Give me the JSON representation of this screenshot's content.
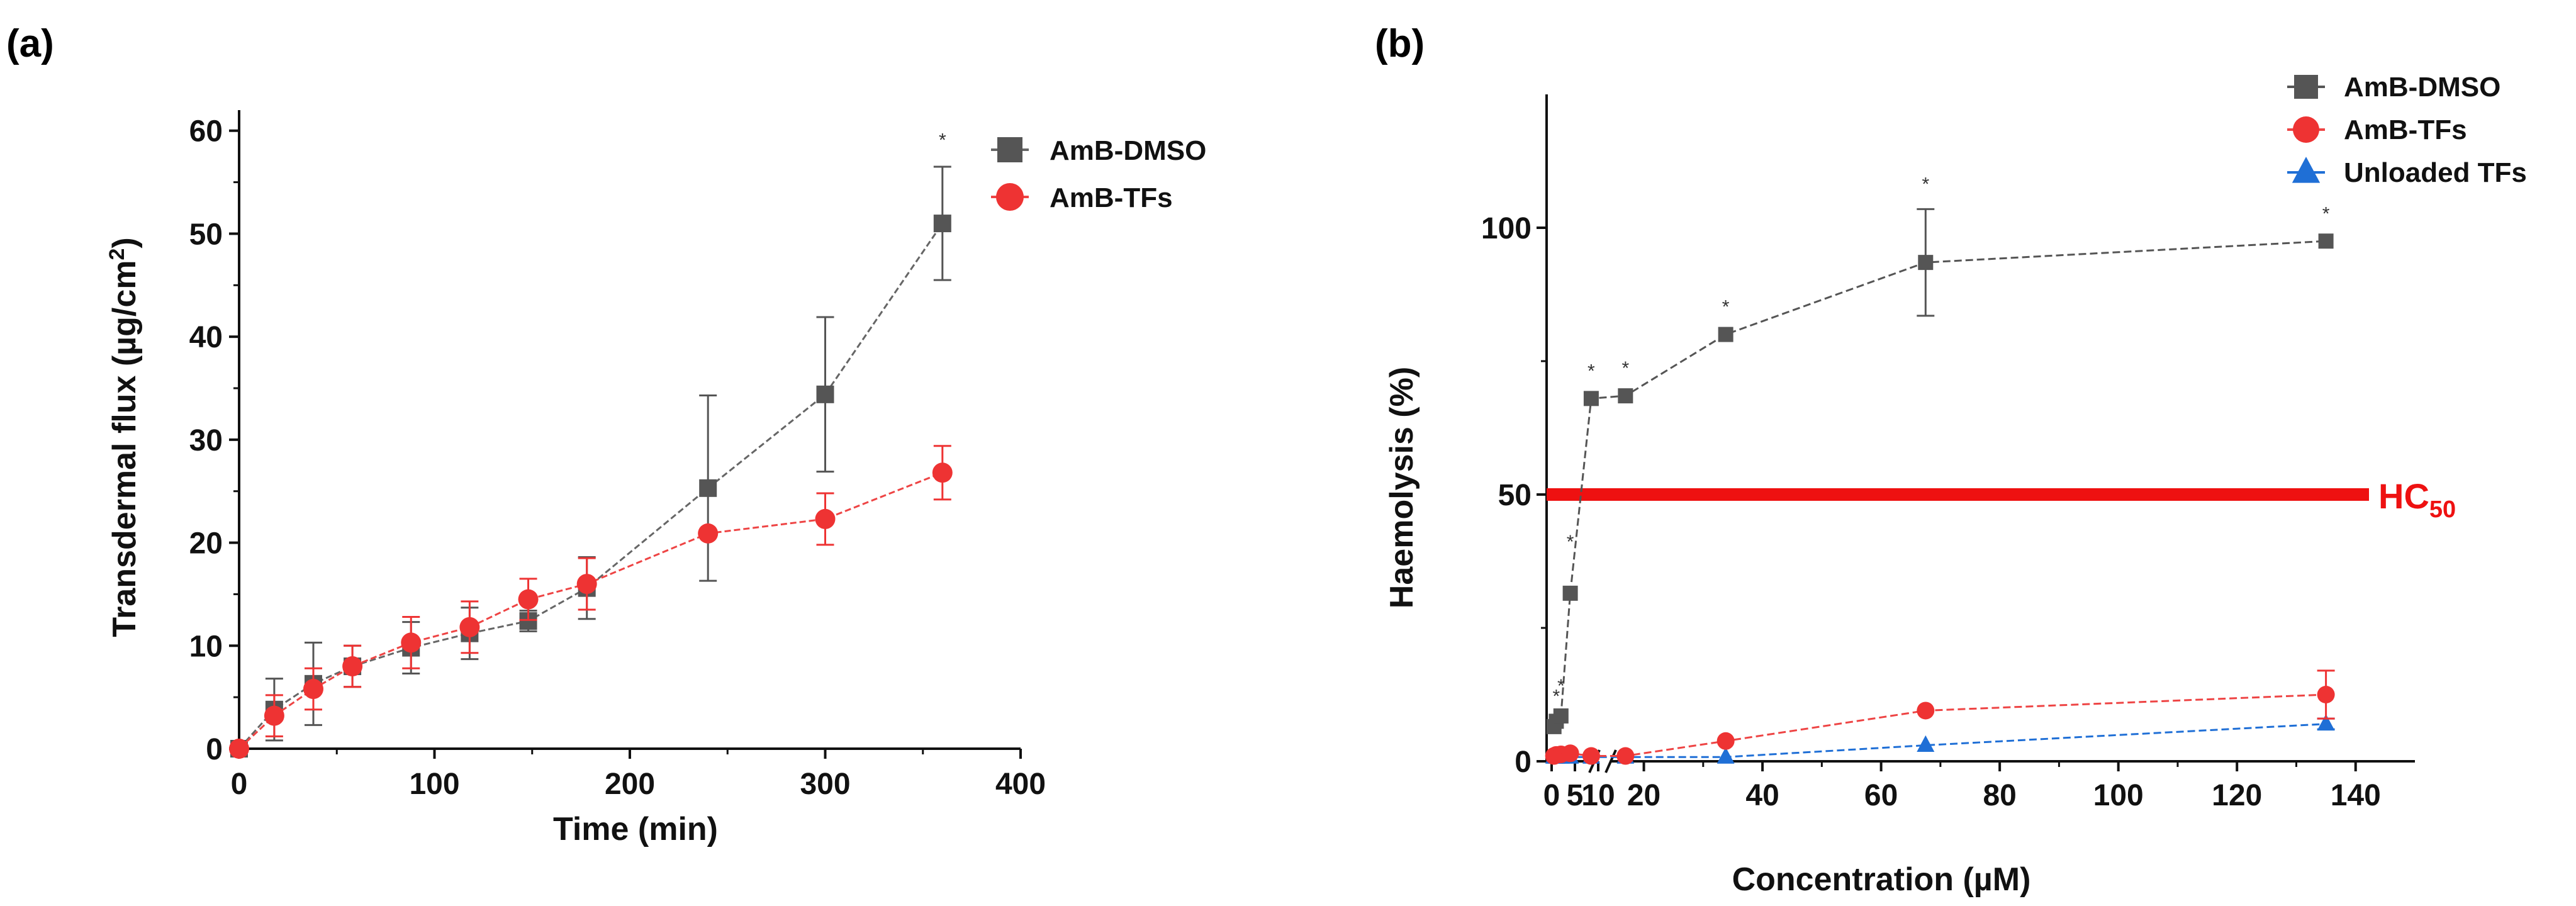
{
  "chart_data": [
    {
      "type": "line",
      "panel_label": "(a)",
      "title": "",
      "xlabel": "Time (min)",
      "ylabel_main": "Transdermal flux (µg/cm",
      "ylabel_sup": "2",
      "ylabel_end": ")",
      "xlim": [
        0,
        400
      ],
      "ylim": [
        0,
        62
      ],
      "xticks": [
        0,
        100,
        200,
        300,
        400
      ],
      "yticks": [
        0,
        10,
        20,
        30,
        40,
        50,
        60
      ],
      "grid": false,
      "legend_position": "top-right",
      "series": [
        {
          "name": "AmB-DMSO",
          "marker": "square",
          "color": "#555555",
          "line_color": "#666666",
          "x": [
            0,
            18,
            38,
            58,
            88,
            118,
            148,
            178,
            240,
            300,
            360
          ],
          "y": [
            0,
            3.8,
            6.3,
            8.0,
            9.8,
            11.2,
            12.4,
            15.6,
            25.3,
            34.4,
            51.0
          ],
          "err": [
            0,
            3.0,
            4.0,
            2.0,
            2.5,
            2.5,
            1.0,
            3.0,
            9.0,
            7.5,
            5.5
          ]
        },
        {
          "name": "AmB-TFs",
          "marker": "circle",
          "color": "#ee3333",
          "line_color": "#ee4444",
          "x": [
            0,
            18,
            38,
            58,
            88,
            118,
            148,
            178,
            240,
            300,
            360
          ],
          "y": [
            0,
            3.2,
            5.8,
            8.0,
            10.3,
            11.8,
            14.5,
            16.0,
            20.9,
            22.3,
            26.8
          ],
          "err": [
            0,
            2.0,
            2.0,
            2.0,
            2.5,
            2.5,
            2.0,
            2.5,
            0,
            2.5,
            2.6
          ]
        }
      ],
      "annotations": [
        {
          "text": "*",
          "x": 360,
          "y": 58.5
        }
      ]
    },
    {
      "type": "line",
      "panel_label": "(b)",
      "title": "",
      "xlabel": "Concentration (µM)",
      "ylabel": "Haemolysis (%)",
      "xlim": [
        0,
        150
      ],
      "ylim": [
        0,
        125
      ],
      "xtick_labels": [
        "0",
        "5",
        "10",
        "20",
        "40",
        "60",
        "80",
        "100",
        "120",
        "140"
      ],
      "yticks": [
        0,
        50,
        100
      ],
      "axis_break": "between 10 and 15",
      "grid": false,
      "legend_position": "top-right",
      "reference_line": {
        "label_main": "HC",
        "label_sub": "50",
        "y": 50,
        "color": "#ee1111"
      },
      "series": [
        {
          "name": "AmB-DMSO",
          "marker": "square",
          "color": "#555555",
          "line_color": "#555555",
          "x": [
            0.5,
            1.0,
            2.0,
            4.0,
            8.5,
            16.9,
            33.8,
            67.5,
            135
          ],
          "y": [
            6.5,
            7.5,
            8.5,
            31.5,
            68.0,
            68.5,
            80.0,
            93.5,
            97.5
          ],
          "err": [
            0,
            0,
            0,
            0,
            0,
            0,
            0,
            10.0,
            0
          ]
        },
        {
          "name": "AmB-TFs",
          "marker": "circle",
          "color": "#ee3333",
          "line_color": "#ee4444",
          "x": [
            0.5,
            1.0,
            2.0,
            4.0,
            8.5,
            16.9,
            33.8,
            67.5,
            135
          ],
          "y": [
            1.0,
            1.2,
            1.3,
            1.5,
            1.0,
            1.0,
            3.8,
            9.5,
            12.5
          ],
          "err": [
            0,
            0,
            0,
            0,
            0,
            0,
            0,
            0,
            4.5
          ]
        },
        {
          "name": "Unloaded TFs",
          "marker": "triangle",
          "color": "#1f6fd6",
          "line_color": "#1f6fd6",
          "x": [
            0.5,
            1.0,
            2.0,
            4.0,
            8.5,
            16.9,
            33.8,
            67.5,
            135
          ],
          "y": [
            0.8,
            0.8,
            0.8,
            0.8,
            0.8,
            0.8,
            0.8,
            3.0,
            7.0
          ],
          "err": [
            0,
            0,
            0,
            0,
            0,
            0,
            0,
            0,
            1.0
          ]
        }
      ],
      "annotations": [
        {
          "text": "*",
          "x": 1.0,
          "y": 11
        },
        {
          "text": "*",
          "x": 2.0,
          "y": 13
        },
        {
          "text": "*",
          "x": 4.0,
          "y": 40
        },
        {
          "text": "*",
          "x": 8.5,
          "y": 72
        },
        {
          "text": "*",
          "x": 16.9,
          "y": 72.5
        },
        {
          "text": "*",
          "x": 33.8,
          "y": 84
        },
        {
          "text": "*",
          "x": 67.5,
          "y": 107
        },
        {
          "text": "*",
          "x": 135,
          "y": 101.5
        }
      ]
    }
  ]
}
